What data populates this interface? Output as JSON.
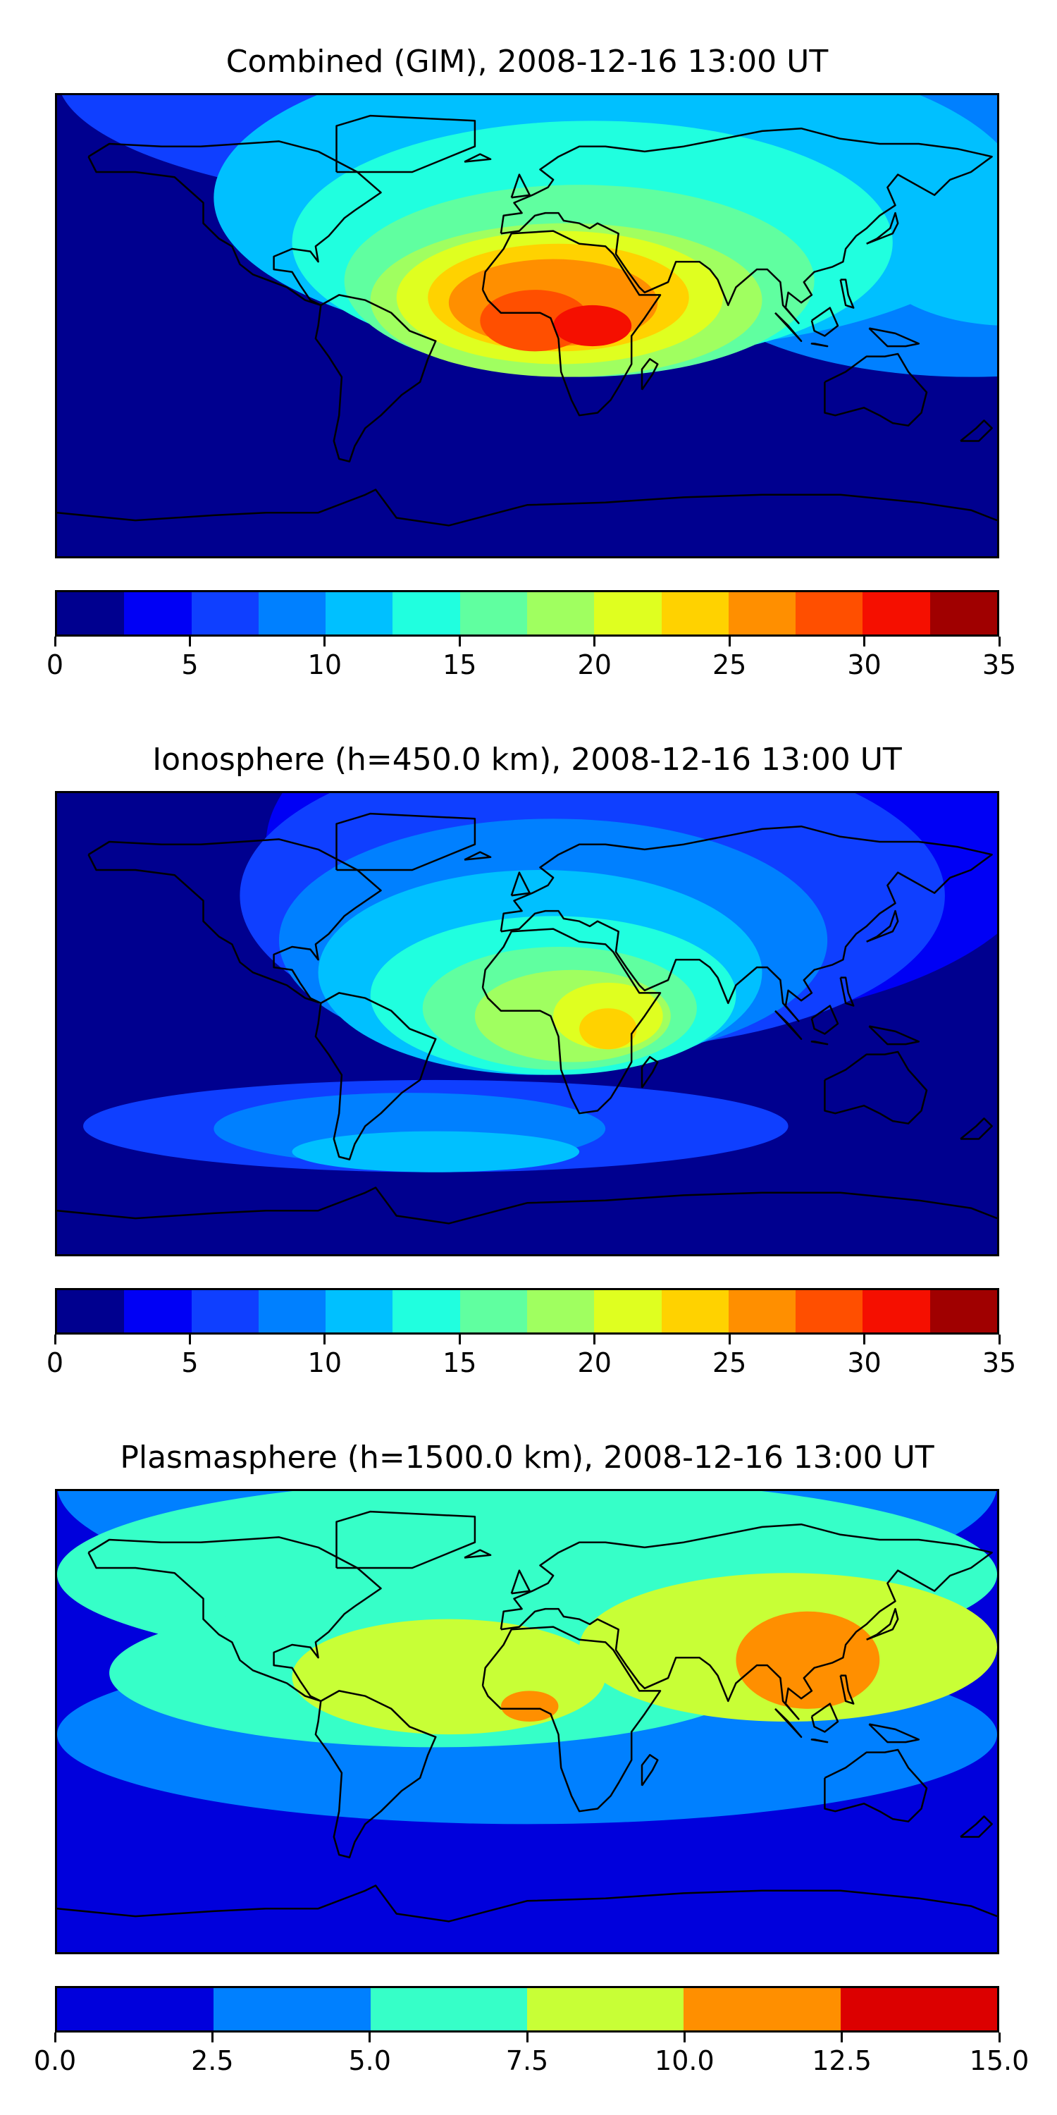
{
  "panels": [
    {
      "title": "Combined (GIM), 2008-12-16 13:00 UT",
      "colors": [
        "#00008f",
        "#0000f5",
        "#0f3fff",
        "#0080ff",
        "#00c0ff",
        "#20ffdf",
        "#60ffa0",
        "#a0ff60",
        "#dfff20",
        "#ffd200",
        "#ff8f00",
        "#ff4f00",
        "#f50f00",
        "#a00000"
      ],
      "ticks": [
        "0",
        "5",
        "10",
        "15",
        "20",
        "25",
        "30",
        "35"
      ],
      "range": [
        0,
        35
      ],
      "levels": [
        {
          "level": 1,
          "blobs": [
            [
              -180,
              80,
              360,
              150
            ],
            [
              -40,
              5,
              240,
              150
            ]
          ]
        },
        {
          "level": 2,
          "blobs": [
            [
              -180,
              45,
              360,
              105
            ]
          ]
        },
        {
          "level": 3,
          "blobs": [
            [
              -80,
              0,
              300,
              135
            ],
            [
              60,
              -20,
              220,
              90
            ]
          ]
        },
        {
          "level": 4,
          "blobs": [
            [
              -120,
              -10,
              310,
              120
            ],
            [
              130,
              0,
              110,
              60
            ]
          ]
        },
        {
          "level": 5,
          "blobs": [
            [
              -90,
              -15,
              230,
              95
            ]
          ]
        },
        {
          "level": 6,
          "blobs": [
            [
              -70,
              -20,
              180,
              75
            ]
          ]
        },
        {
          "level": 7,
          "blobs": [
            [
              -60,
              -20,
              150,
              60
            ]
          ]
        },
        {
          "level": 8,
          "blobs": [
            [
              -50,
              -15,
              125,
              52
            ]
          ]
        },
        {
          "level": 9,
          "blobs": [
            [
              -38,
              -10,
              100,
              42
            ]
          ]
        },
        {
          "level": 10,
          "blobs": [
            [
              -30,
              -8,
              80,
              34
            ]
          ]
        },
        {
          "level": 11,
          "blobs": [
            [
              -18,
              -10,
              42,
              24
            ]
          ]
        },
        {
          "level": 12,
          "blobs": [
            [
              10,
              -8,
              30,
              16
            ]
          ]
        }
      ]
    },
    {
      "title": "Ionosphere  (h=450.0 km), 2008-12-16 13:00 UT",
      "colors": [
        "#00008f",
        "#0000f5",
        "#0f3fff",
        "#0080ff",
        "#00c0ff",
        "#20ffdf",
        "#60ffa0",
        "#a0ff60",
        "#dfff20",
        "#ffd200",
        "#ff8f00",
        "#ff4f00",
        "#f50f00",
        "#a00000"
      ],
      "ticks": [
        "0",
        "5",
        "10",
        "15",
        "20",
        "25",
        "30",
        "35"
      ],
      "range": [
        0,
        35
      ],
      "levels": [
        {
          "level": 1,
          "blobs": [
            [
              -100,
              0,
              300,
              140
            ],
            [
              -20,
              0,
              140,
              110
            ]
          ]
        },
        {
          "level": 2,
          "blobs": [
            [
              -110,
              -10,
              270,
              120
            ],
            [
              -170,
              -58,
              270,
              36
            ]
          ]
        },
        {
          "level": 3,
          "blobs": [
            [
              -95,
              -15,
              210,
              95
            ],
            [
              -120,
              -55,
              150,
              28
            ]
          ]
        },
        {
          "level": 4,
          "blobs": [
            [
              -80,
              -20,
              170,
              80
            ],
            [
              -90,
              -58,
              110,
              16
            ]
          ]
        },
        {
          "level": 5,
          "blobs": [
            [
              -60,
              -20,
              140,
              62
            ]
          ]
        },
        {
          "level": 6,
          "blobs": [
            [
              -40,
              -18,
              105,
              48
            ]
          ]
        },
        {
          "level": 7,
          "blobs": [
            [
              -20,
              -15,
              75,
              36
            ]
          ]
        },
        {
          "level": 8,
          "blobs": [
            [
              10,
              -10,
              42,
              26
            ]
          ]
        },
        {
          "level": 9,
          "blobs": [
            [
              20,
              -10,
              22,
              16
            ]
          ]
        }
      ]
    },
    {
      "title": "Plasmasphere (h=1500.0 km), 2008-12-16 13:00 UT",
      "colors": [
        "#0000dc",
        "#0080ff",
        "#36ffc8",
        "#c8ff36",
        "#ff8f00",
        "#dc0000"
      ],
      "ticks": [
        "0.0",
        "2.5",
        "5.0",
        "7.5",
        "10.0",
        "12.5",
        "15.0"
      ],
      "range": [
        0,
        15
      ],
      "levels": [
        {
          "level": 1,
          "blobs": [
            [
              -180,
              45,
              360,
              95
            ],
            [
              -180,
              -40,
              360,
              70
            ]
          ]
        },
        {
          "level": 2,
          "blobs": [
            [
              -180,
              20,
              360,
              75
            ],
            [
              -160,
              -10,
              250,
              58
            ]
          ]
        },
        {
          "level": 3,
          "blobs": [
            [
              -90,
              -5,
              120,
              45
            ],
            [
              20,
              0,
              160,
              58
            ]
          ]
        },
        {
          "level": 4,
          "blobs": [
            [
              -10,
              0,
              22,
              12
            ],
            [
              80,
              5,
              55,
              38
            ]
          ]
        }
      ]
    }
  ]
}
